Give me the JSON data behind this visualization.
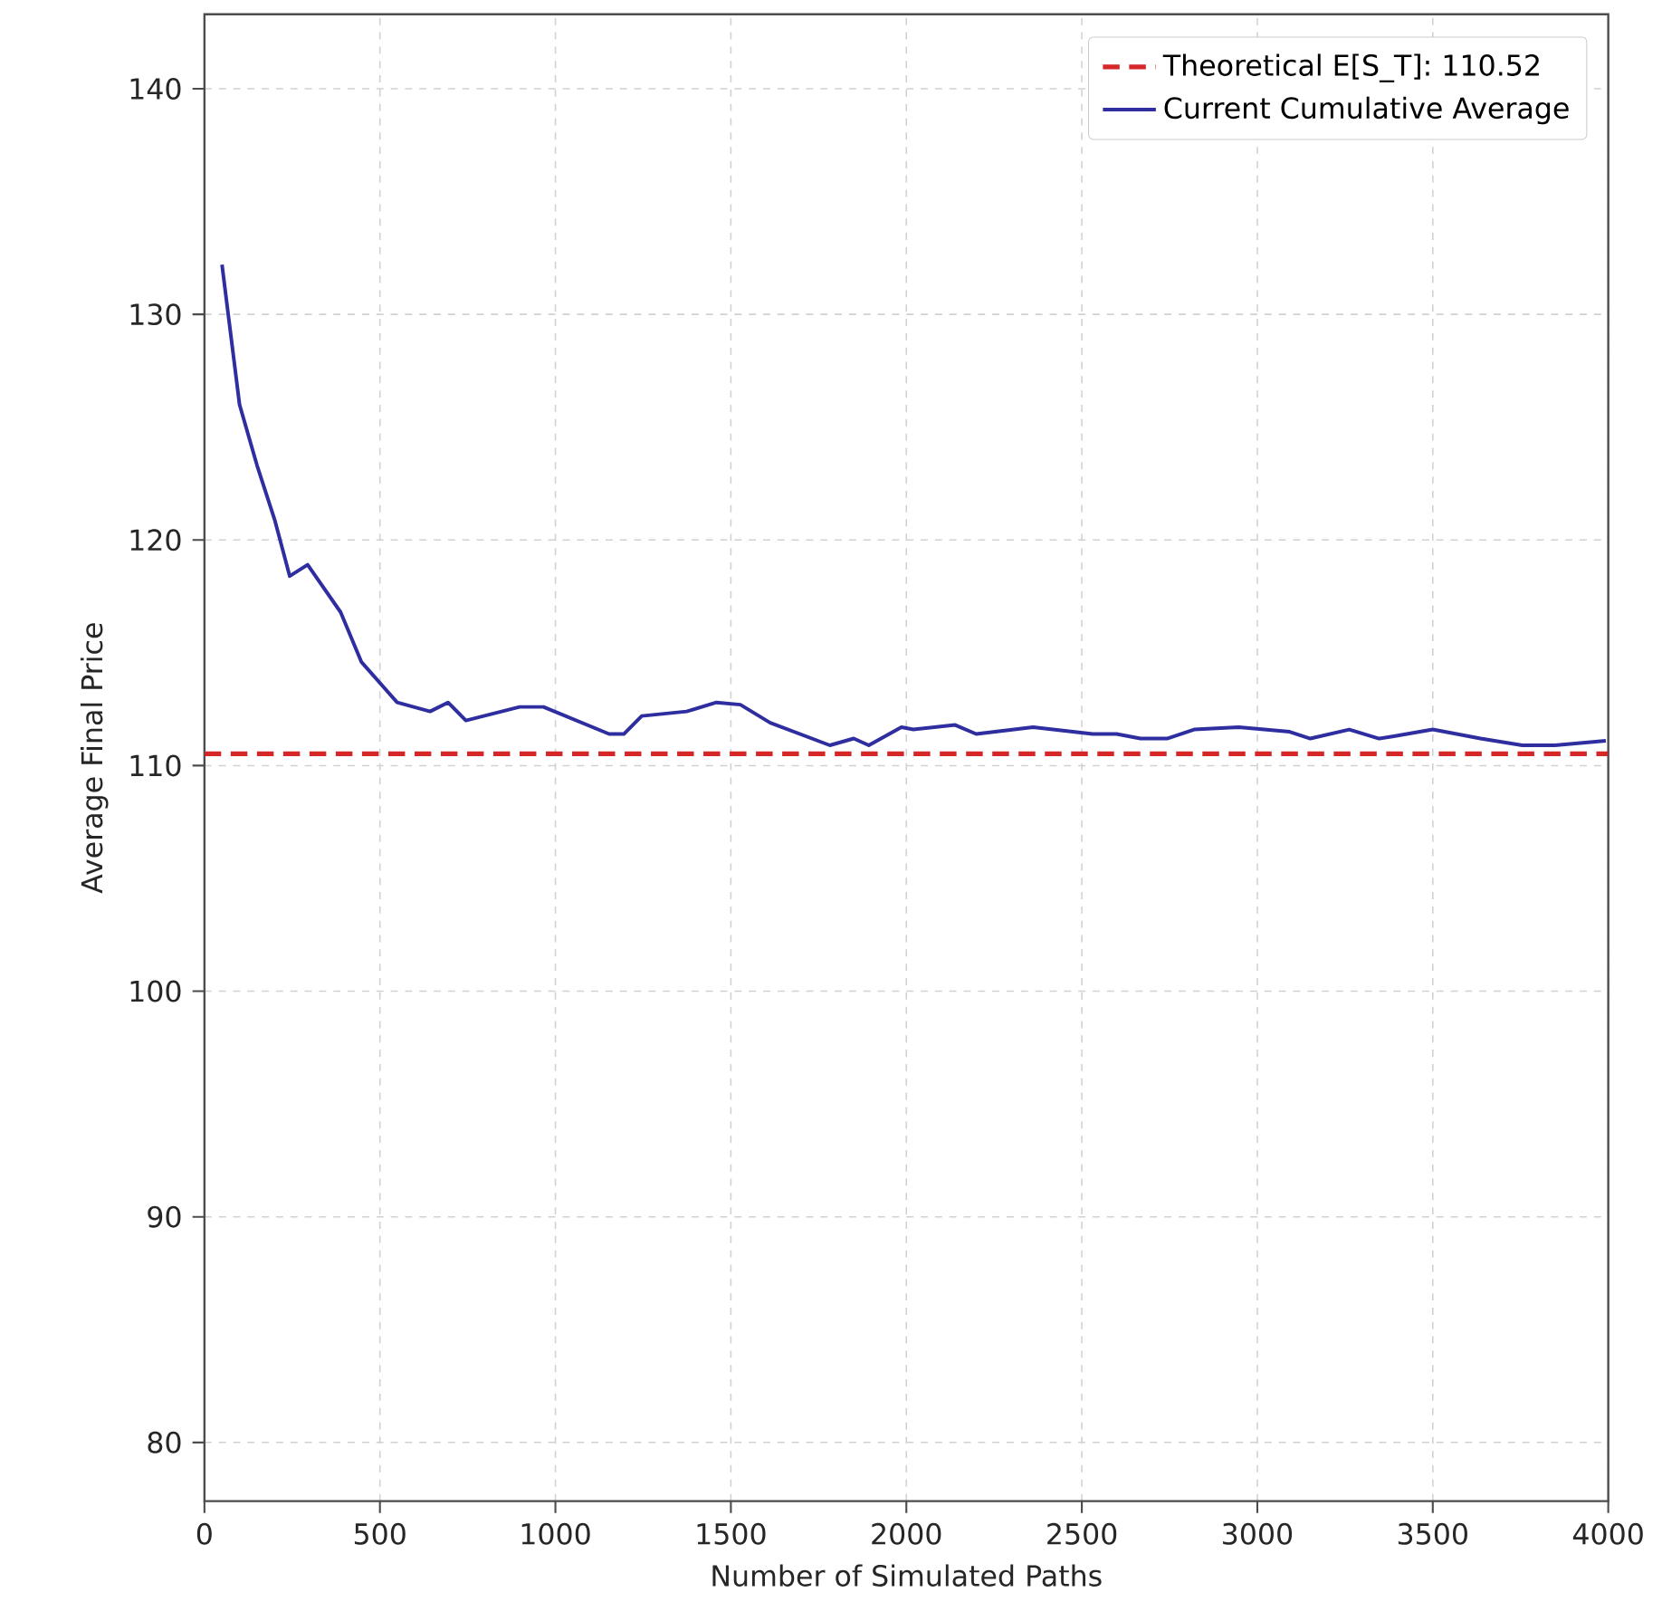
{
  "chart_data": {
    "type": "line",
    "xlabel": "Number of Simulated Paths",
    "ylabel": "Average Final Price",
    "xlim": [
      0,
      4000
    ],
    "ylim": [
      77.4,
      143.3
    ],
    "xticks": [
      0,
      500,
      1000,
      1500,
      2000,
      2500,
      3000,
      3500,
      4000
    ],
    "yticks": [
      80,
      90,
      100,
      110,
      120,
      130,
      140
    ],
    "grid": true,
    "legend": "top right",
    "ref_lines": [
      {
        "axis": "y",
        "value": 110.52,
        "label": "Theoretical E[S_T]: 110.52",
        "color": "#d62728",
        "line_style": "dashed"
      }
    ],
    "series": [
      {
        "name": "Current Cumulative Average",
        "color": "#2e2ea0",
        "x": [
          50,
          100,
          150,
          200,
          243,
          294,
          388,
          447,
          549,
          643,
          694,
          745,
          898,
          966,
          1153,
          1195,
          1246,
          1374,
          1459,
          1527,
          1612,
          1782,
          1850,
          1893,
          1986,
          2020,
          2139,
          2199,
          2361,
          2531,
          2599,
          2667,
          2743,
          2820,
          2947,
          3092,
          3151,
          3262,
          3347,
          3389,
          3500,
          3636,
          3755,
          3848,
          3993
        ],
        "values": [
          132.2,
          126.0,
          123.3,
          120.9,
          118.4,
          118.9,
          116.8,
          114.6,
          112.8,
          112.4,
          112.8,
          112.0,
          112.6,
          112.6,
          111.4,
          111.4,
          112.2,
          112.4,
          112.8,
          112.7,
          111.9,
          110.9,
          111.2,
          110.9,
          111.7,
          111.6,
          111.8,
          111.4,
          111.7,
          111.4,
          111.4,
          111.2,
          111.2,
          111.6,
          111.7,
          111.5,
          111.2,
          111.6,
          111.2,
          111.3,
          111.6,
          111.2,
          110.9,
          110.9,
          111.1
        ]
      }
    ]
  }
}
